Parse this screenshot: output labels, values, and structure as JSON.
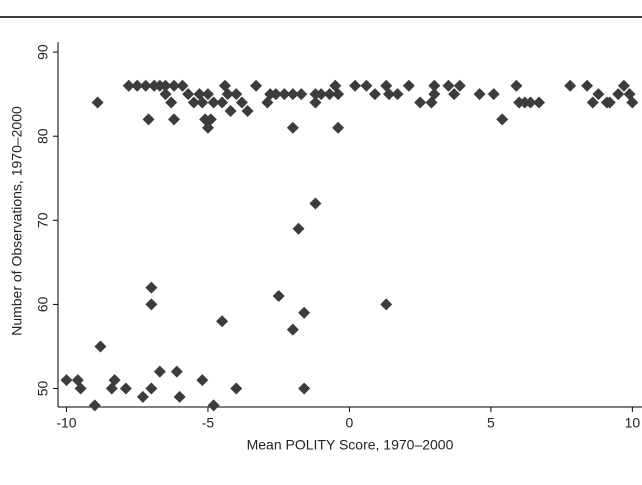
{
  "chart_data": {
    "type": "scatter",
    "xlabel": "Mean POLITY Score, 1970–2000",
    "ylabel": "Number of Observations, 1970–2000",
    "color": "#3c3c3c",
    "xlim": [
      -10.3,
      10.8
    ],
    "ylim": [
      47.8,
      91.2
    ],
    "xticks": [
      -10,
      -5,
      0,
      5,
      10
    ],
    "yticks": [
      50,
      60,
      70,
      80,
      90
    ],
    "x": [
      -8.9,
      -7.8,
      -7.5,
      -7.2,
      -7.1,
      -6.9,
      -6.7,
      -6.5,
      -6.3,
      -6.5,
      -6.2,
      -6.2,
      -5.9,
      -5.7,
      -5.5,
      -5.3,
      -5.1,
      -5.0,
      -5.2,
      -5.0,
      -4.9,
      -4.8,
      -4.5,
      -4.4,
      -4.3,
      -4.2,
      -4.0,
      -3.8,
      -3.6,
      -3.3,
      -2.9,
      -2.8,
      -2.6,
      -2.3,
      -2.0,
      -2.0,
      -1.7,
      -1.2,
      -1.2,
      -1.0,
      -0.7,
      -0.5,
      -0.4,
      -0.4,
      0.2,
      0.6,
      0.9,
      1.3,
      1.4,
      1.7,
      2.1,
      2.5,
      3.0,
      3.0,
      2.9,
      3.5,
      3.7,
      3.9,
      4.6,
      5.1,
      5.4,
      5.9,
      6.0,
      6.2,
      6.4,
      6.7,
      7.8,
      8.4,
      8.6,
      8.8,
      9.1,
      9.5,
      9.7,
      9.9,
      10.0,
      9.2,
      -10.0,
      -9.6,
      -9.5,
      -9.0,
      -8.8,
      -8.4,
      -8.3,
      -7.9,
      -7.3,
      -7.0,
      -7.0,
      -7.0,
      -6.7,
      -6.1,
      -6.0,
      -5.2,
      -4.8,
      -4.5,
      -4.0,
      -2.5,
      -2.0,
      -1.8,
      -1.6,
      -1.6,
      -1.2,
      1.3
    ],
    "values": [
      84,
      86,
      86,
      86,
      82,
      86,
      86,
      86,
      84,
      85,
      82,
      86,
      86,
      85,
      84,
      85,
      82,
      81,
      84,
      85,
      82,
      84,
      84,
      86,
      85,
      83,
      85,
      84,
      83,
      86,
      84,
      85,
      85,
      85,
      85,
      81,
      85,
      85,
      84,
      85,
      85,
      86,
      85,
      81,
      86,
      86,
      85,
      86,
      85,
      85,
      86,
      84,
      86,
      85,
      84,
      86,
      85,
      86,
      85,
      85,
      82,
      86,
      84,
      84,
      84,
      84,
      86,
      86,
      84,
      85,
      84,
      85,
      86,
      85,
      84,
      84,
      51,
      51,
      50,
      48,
      55,
      50,
      51,
      50,
      49,
      62,
      60,
      50,
      52,
      52,
      49,
      51,
      48,
      58,
      50,
      61,
      57,
      69,
      59,
      50,
      72,
      60
    ]
  }
}
